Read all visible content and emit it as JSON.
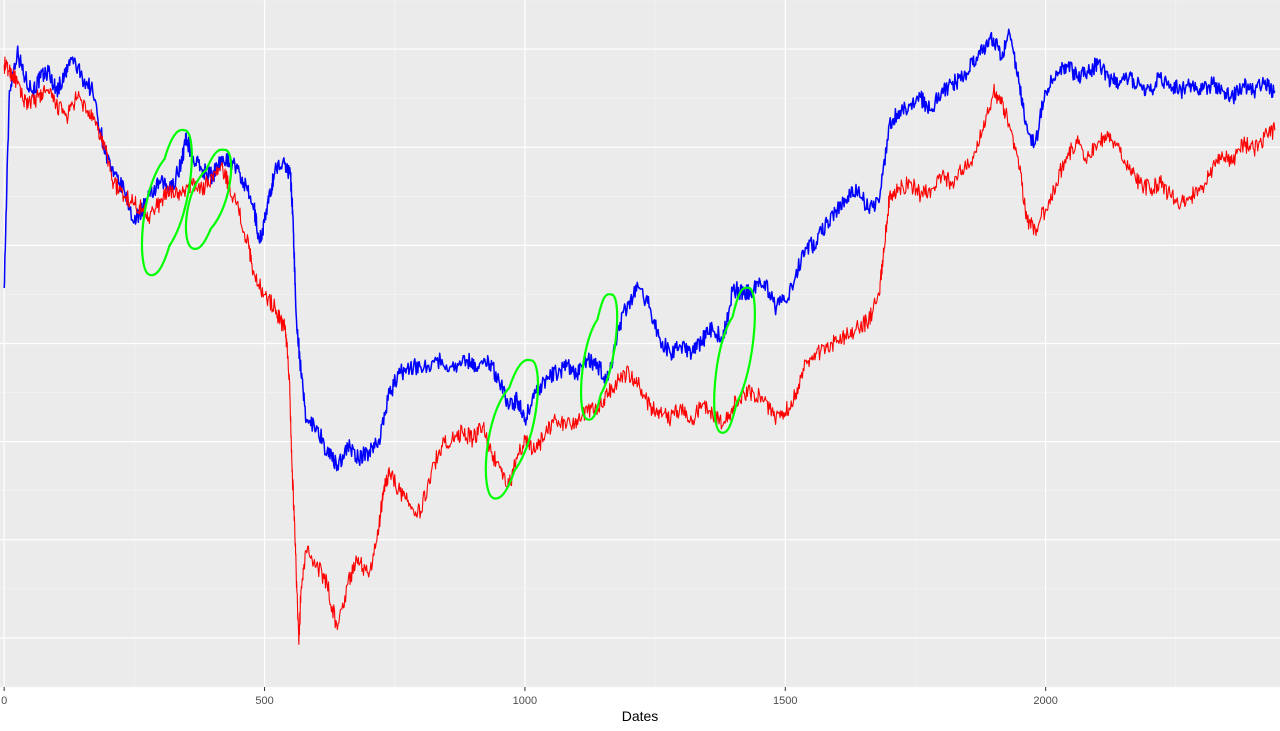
{
  "chart_data": {
    "type": "line",
    "xlabel": "Dates",
    "ylabel": "",
    "x_ticks": [
      0,
      500,
      1000,
      1500,
      2000
    ],
    "xlim": [
      -8,
      2450
    ],
    "ylim": [
      0,
      100
    ],
    "grid": true,
    "legend": "none",
    "background_color": "#ebebeb",
    "series": [
      {
        "color": "#0000ff",
        "points": [
          [
            0,
            58
          ],
          [
            10,
            88
          ],
          [
            25,
            94
          ],
          [
            40,
            90
          ],
          [
            55,
            88
          ],
          [
            70,
            90
          ],
          [
            85,
            91
          ],
          [
            100,
            88
          ],
          [
            115,
            90
          ],
          [
            130,
            93
          ],
          [
            150,
            90
          ],
          [
            170,
            88
          ],
          [
            190,
            80
          ],
          [
            210,
            75
          ],
          [
            230,
            73
          ],
          [
            250,
            68
          ],
          [
            265,
            70
          ],
          [
            280,
            72
          ],
          [
            300,
            74
          ],
          [
            320,
            73
          ],
          [
            340,
            77
          ],
          [
            350,
            81
          ],
          [
            360,
            78
          ],
          [
            380,
            76
          ],
          [
            400,
            75
          ],
          [
            420,
            78
          ],
          [
            440,
            77
          ],
          [
            460,
            74
          ],
          [
            480,
            70
          ],
          [
            490,
            65
          ],
          [
            500,
            68
          ],
          [
            510,
            72
          ],
          [
            520,
            76
          ],
          [
            540,
            77
          ],
          [
            550,
            75
          ],
          [
            555,
            68
          ],
          [
            560,
            55
          ],
          [
            570,
            45
          ],
          [
            580,
            38
          ],
          [
            600,
            37
          ],
          [
            620,
            33
          ],
          [
            640,
            31
          ],
          [
            660,
            34
          ],
          [
            680,
            32
          ],
          [
            700,
            33
          ],
          [
            720,
            35
          ],
          [
            740,
            42
          ],
          [
            760,
            45
          ],
          [
            780,
            46
          ],
          [
            800,
            46
          ],
          [
            830,
            47
          ],
          [
            860,
            46
          ],
          [
            890,
            47
          ],
          [
            910,
            46
          ],
          [
            930,
            47
          ],
          [
            950,
            44
          ],
          [
            970,
            40
          ],
          [
            985,
            41
          ],
          [
            1000,
            38
          ],
          [
            1020,
            42
          ],
          [
            1040,
            44
          ],
          [
            1060,
            45
          ],
          [
            1080,
            46
          ],
          [
            1100,
            45
          ],
          [
            1120,
            47
          ],
          [
            1140,
            46
          ],
          [
            1160,
            44
          ],
          [
            1180,
            52
          ],
          [
            1200,
            56
          ],
          [
            1220,
            58
          ],
          [
            1240,
            55
          ],
          [
            1260,
            50
          ],
          [
            1280,
            48
          ],
          [
            1300,
            49
          ],
          [
            1320,
            48
          ],
          [
            1340,
            50
          ],
          [
            1360,
            52
          ],
          [
            1380,
            50
          ],
          [
            1400,
            58
          ],
          [
            1420,
            57
          ],
          [
            1440,
            58
          ],
          [
            1460,
            59
          ],
          [
            1480,
            55
          ],
          [
            1500,
            56
          ],
          [
            1520,
            60
          ],
          [
            1540,
            64
          ],
          [
            1560,
            65
          ],
          [
            1580,
            68
          ],
          [
            1600,
            70
          ],
          [
            1620,
            72
          ],
          [
            1640,
            73
          ],
          [
            1660,
            70
          ],
          [
            1680,
            71
          ],
          [
            1700,
            83
          ],
          [
            1720,
            85
          ],
          [
            1740,
            86
          ],
          [
            1760,
            87
          ],
          [
            1780,
            85
          ],
          [
            1800,
            88
          ],
          [
            1820,
            89
          ],
          [
            1840,
            90
          ],
          [
            1860,
            92
          ],
          [
            1880,
            94
          ],
          [
            1900,
            96
          ],
          [
            1915,
            93
          ],
          [
            1930,
            97
          ],
          [
            1950,
            89
          ],
          [
            1965,
            82
          ],
          [
            1980,
            80
          ],
          [
            2000,
            88
          ],
          [
            2020,
            91
          ],
          [
            2040,
            92
          ],
          [
            2060,
            90
          ],
          [
            2080,
            91
          ],
          [
            2100,
            92
          ],
          [
            2120,
            90
          ],
          [
            2140,
            89
          ],
          [
            2160,
            90
          ],
          [
            2180,
            89
          ],
          [
            2200,
            88
          ],
          [
            2220,
            90
          ],
          [
            2240,
            89
          ],
          [
            2260,
            88
          ],
          [
            2280,
            89
          ],
          [
            2300,
            88
          ],
          [
            2320,
            89
          ],
          [
            2340,
            88
          ],
          [
            2360,
            87
          ],
          [
            2380,
            89
          ],
          [
            2400,
            88
          ],
          [
            2420,
            89
          ],
          [
            2440,
            88
          ]
        ]
      },
      {
        "color": "#ff0000",
        "points": [
          [
            0,
            92
          ],
          [
            10,
            91
          ],
          [
            20,
            90
          ],
          [
            35,
            87
          ],
          [
            50,
            86
          ],
          [
            65,
            87
          ],
          [
            80,
            88
          ],
          [
            100,
            86
          ],
          [
            120,
            84
          ],
          [
            140,
            87
          ],
          [
            160,
            85
          ],
          [
            180,
            82
          ],
          [
            195,
            79
          ],
          [
            210,
            74
          ],
          [
            230,
            72
          ],
          [
            250,
            71
          ],
          [
            265,
            70
          ],
          [
            280,
            69
          ],
          [
            300,
            71
          ],
          [
            320,
            73
          ],
          [
            340,
            72
          ],
          [
            360,
            74
          ],
          [
            380,
            73
          ],
          [
            400,
            75
          ],
          [
            420,
            76
          ],
          [
            430,
            74
          ],
          [
            450,
            70
          ],
          [
            470,
            64
          ],
          [
            480,
            60
          ],
          [
            500,
            57
          ],
          [
            520,
            55
          ],
          [
            530,
            53
          ],
          [
            540,
            52
          ],
          [
            548,
            44
          ],
          [
            553,
            30
          ],
          [
            558,
            22
          ],
          [
            562,
            12
          ],
          [
            566,
            4
          ],
          [
            570,
            12
          ],
          [
            580,
            18
          ],
          [
            600,
            16
          ],
          [
            620,
            13
          ],
          [
            640,
            6
          ],
          [
            660,
            13
          ],
          [
            680,
            17
          ],
          [
            700,
            14
          ],
          [
            720,
            22
          ],
          [
            730,
            28
          ],
          [
            740,
            30
          ],
          [
            760,
            27
          ],
          [
            780,
            25
          ],
          [
            800,
            24
          ],
          [
            820,
            30
          ],
          [
            840,
            34
          ],
          [
            860,
            35
          ],
          [
            880,
            36
          ],
          [
            900,
            35
          ],
          [
            920,
            37
          ],
          [
            935,
            33
          ],
          [
            955,
            30
          ],
          [
            970,
            28
          ],
          [
            985,
            32
          ],
          [
            1000,
            35
          ],
          [
            1020,
            33
          ],
          [
            1040,
            36
          ],
          [
            1060,
            38
          ],
          [
            1080,
            37
          ],
          [
            1100,
            38
          ],
          [
            1120,
            39
          ],
          [
            1140,
            40
          ],
          [
            1160,
            42
          ],
          [
            1180,
            44
          ],
          [
            1200,
            45
          ],
          [
            1220,
            43
          ],
          [
            1240,
            40
          ],
          [
            1260,
            39
          ],
          [
            1280,
            38
          ],
          [
            1300,
            40
          ],
          [
            1320,
            38
          ],
          [
            1340,
            40
          ],
          [
            1360,
            39
          ],
          [
            1380,
            37
          ],
          [
            1400,
            40
          ],
          [
            1420,
            42
          ],
          [
            1440,
            42
          ],
          [
            1460,
            41
          ],
          [
            1480,
            38
          ],
          [
            1500,
            39
          ],
          [
            1520,
            42
          ],
          [
            1540,
            47
          ],
          [
            1560,
            48
          ],
          [
            1580,
            49
          ],
          [
            1600,
            50
          ],
          [
            1620,
            51
          ],
          [
            1640,
            52
          ],
          [
            1660,
            53
          ],
          [
            1680,
            57
          ],
          [
            1690,
            64
          ],
          [
            1700,
            72
          ],
          [
            1720,
            73
          ],
          [
            1740,
            74
          ],
          [
            1760,
            72
          ],
          [
            1780,
            73
          ],
          [
            1800,
            75
          ],
          [
            1820,
            74
          ],
          [
            1840,
            76
          ],
          [
            1860,
            78
          ],
          [
            1880,
            82
          ],
          [
            1900,
            88
          ],
          [
            1915,
            86
          ],
          [
            1930,
            83
          ],
          [
            1950,
            76
          ],
          [
            1965,
            68
          ],
          [
            1980,
            67
          ],
          [
            2000,
            70
          ],
          [
            2020,
            74
          ],
          [
            2040,
            78
          ],
          [
            2060,
            80
          ],
          [
            2080,
            78
          ],
          [
            2100,
            80
          ],
          [
            2120,
            81
          ],
          [
            2140,
            80
          ],
          [
            2160,
            76
          ],
          [
            2180,
            74
          ],
          [
            2200,
            73
          ],
          [
            2220,
            74
          ],
          [
            2240,
            72
          ],
          [
            2260,
            71
          ],
          [
            2280,
            72
          ],
          [
            2300,
            73
          ],
          [
            2320,
            76
          ],
          [
            2340,
            78
          ],
          [
            2360,
            77
          ],
          [
            2380,
            80
          ],
          [
            2400,
            79
          ],
          [
            2420,
            81
          ],
          [
            2440,
            82
          ]
        ]
      }
    ],
    "annotations": [
      {
        "shape": "loop",
        "color": "#00ff00",
        "x_range": [
          265,
          360
        ],
        "y_range": [
          60,
          82
        ]
      },
      {
        "shape": "loop",
        "color": "#00ff00",
        "x_range": [
          350,
          435
        ],
        "y_range": [
          64,
          79
        ]
      },
      {
        "shape": "loop",
        "color": "#00ff00",
        "x_range": [
          925,
          1025
        ],
        "y_range": [
          26,
          47
        ]
      },
      {
        "shape": "loop",
        "color": "#00ff00",
        "x_range": [
          1110,
          1175
        ],
        "y_range": [
          38,
          57
        ]
      },
      {
        "shape": "loop",
        "color": "#00ff00",
        "x_range": [
          1365,
          1440
        ],
        "y_range": [
          36,
          58
        ]
      }
    ]
  }
}
